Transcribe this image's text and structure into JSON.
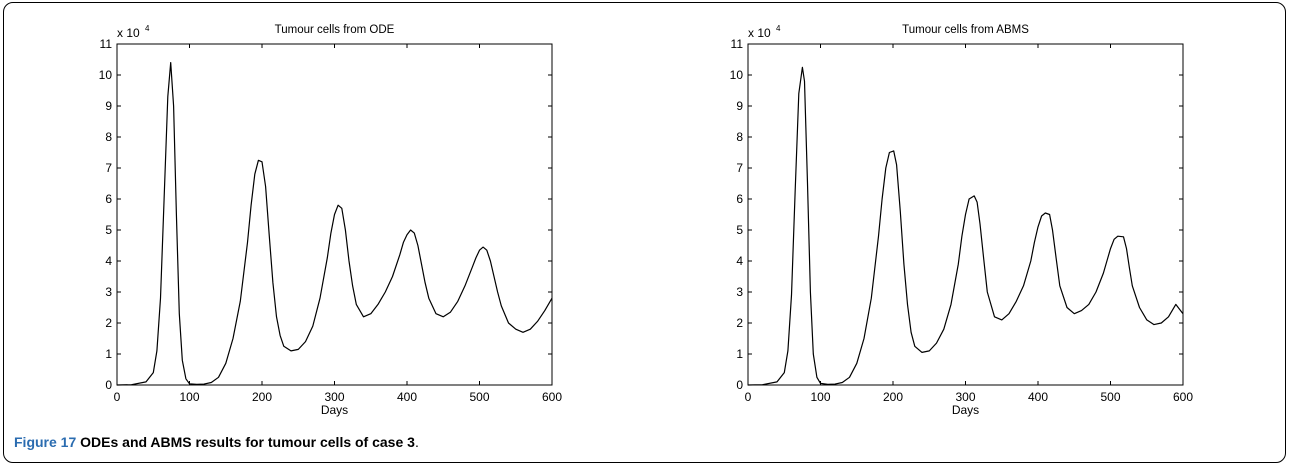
{
  "chart_data": [
    {
      "type": "line",
      "title": "Tumour cells from ODE",
      "xlabel": "Days",
      "ylabel": "",
      "y_exponent_label": "x 10",
      "y_exponent": "4",
      "xlim": [
        0,
        600
      ],
      "ylim": [
        0,
        11
      ],
      "xticks": [
        "0",
        "100",
        "200",
        "300",
        "400",
        "500",
        "600"
      ],
      "yticks": [
        "0",
        "1",
        "2",
        "3",
        "4",
        "5",
        "6",
        "7",
        "8",
        "9",
        "10",
        "11"
      ],
      "grid": false,
      "series": [
        {
          "color": "#000000",
          "x": [
            0,
            20,
            40,
            50,
            55,
            60,
            65,
            70,
            74,
            78,
            82,
            86,
            90,
            95,
            100,
            110,
            120,
            130,
            140,
            150,
            160,
            170,
            180,
            185,
            190,
            195,
            200,
            205,
            210,
            215,
            220,
            225,
            230,
            240,
            250,
            260,
            270,
            280,
            290,
            295,
            300,
            305,
            310,
            315,
            320,
            325,
            330,
            340,
            350,
            360,
            370,
            380,
            390,
            395,
            400,
            405,
            410,
            415,
            420,
            425,
            430,
            440,
            450,
            460,
            470,
            480,
            490,
            495,
            500,
            505,
            510,
            515,
            520,
            525,
            530,
            540,
            550,
            560,
            570,
            580,
            590,
            600
          ],
          "values": [
            0,
            0.01,
            0.1,
            0.4,
            1.1,
            2.8,
            6.0,
            9.3,
            10.4,
            9.0,
            5.5,
            2.3,
            0.8,
            0.2,
            0.04,
            0.02,
            0.03,
            0.08,
            0.25,
            0.7,
            1.5,
            2.7,
            4.6,
            5.8,
            6.8,
            7.25,
            7.2,
            6.4,
            4.8,
            3.3,
            2.2,
            1.6,
            1.25,
            1.1,
            1.15,
            1.4,
            1.9,
            2.8,
            4.1,
            4.9,
            5.5,
            5.8,
            5.7,
            5.0,
            4.0,
            3.2,
            2.6,
            2.2,
            2.3,
            2.6,
            3.0,
            3.5,
            4.2,
            4.6,
            4.85,
            5.0,
            4.9,
            4.5,
            3.9,
            3.3,
            2.8,
            2.3,
            2.2,
            2.35,
            2.7,
            3.2,
            3.8,
            4.1,
            4.35,
            4.45,
            4.35,
            4.0,
            3.5,
            3.0,
            2.55,
            2.0,
            1.8,
            1.7,
            1.8,
            2.05,
            2.4,
            2.8
          ]
        }
      ]
    },
    {
      "type": "line",
      "title": "Tumour cells from ABMS",
      "xlabel": "Days",
      "ylabel": "",
      "y_exponent_label": "x 10",
      "y_exponent": "4",
      "xlim": [
        0,
        600
      ],
      "ylim": [
        0,
        11
      ],
      "xticks": [
        "0",
        "100",
        "200",
        "300",
        "400",
        "500",
        "600"
      ],
      "yticks": [
        "0",
        "1",
        "2",
        "3",
        "4",
        "5",
        "6",
        "7",
        "8",
        "9",
        "10",
        "11"
      ],
      "grid": false,
      "series": [
        {
          "color": "#000000",
          "x": [
            0,
            20,
            40,
            50,
            55,
            60,
            65,
            70,
            75,
            78,
            82,
            86,
            90,
            95,
            100,
            110,
            120,
            130,
            140,
            150,
            160,
            170,
            180,
            185,
            190,
            195,
            201,
            205,
            210,
            215,
            220,
            225,
            230,
            240,
            250,
            260,
            270,
            280,
            290,
            295,
            300,
            305,
            312,
            316,
            320,
            325,
            330,
            340,
            350,
            360,
            370,
            380,
            390,
            395,
            400,
            405,
            410,
            416,
            420,
            425,
            430,
            440,
            450,
            460,
            470,
            480,
            490,
            495,
            500,
            505,
            510,
            518,
            522,
            526,
            530,
            540,
            550,
            560,
            570,
            580,
            590,
            600
          ],
          "values": [
            0,
            0.01,
            0.1,
            0.4,
            1.1,
            2.9,
            6.2,
            9.4,
            10.25,
            9.8,
            6.5,
            3.0,
            1.0,
            0.25,
            0.05,
            0.02,
            0.03,
            0.08,
            0.25,
            0.7,
            1.5,
            2.8,
            4.8,
            6.0,
            7.0,
            7.5,
            7.55,
            7.1,
            5.6,
            3.9,
            2.6,
            1.7,
            1.25,
            1.05,
            1.1,
            1.35,
            1.8,
            2.6,
            3.9,
            4.8,
            5.5,
            6.0,
            6.1,
            5.9,
            5.2,
            4.1,
            3.0,
            2.2,
            2.1,
            2.3,
            2.7,
            3.2,
            4.0,
            4.6,
            5.1,
            5.45,
            5.55,
            5.5,
            5.0,
            4.1,
            3.2,
            2.5,
            2.3,
            2.4,
            2.6,
            3.0,
            3.6,
            4.0,
            4.4,
            4.7,
            4.8,
            4.78,
            4.4,
            3.8,
            3.2,
            2.5,
            2.1,
            1.95,
            2.0,
            2.2,
            2.6,
            2.3
          ]
        }
      ]
    }
  ],
  "caption": {
    "figure_label": "Figure 17",
    "text": "ODEs and ABMS results for tumour cells of case 3",
    "end": "."
  }
}
